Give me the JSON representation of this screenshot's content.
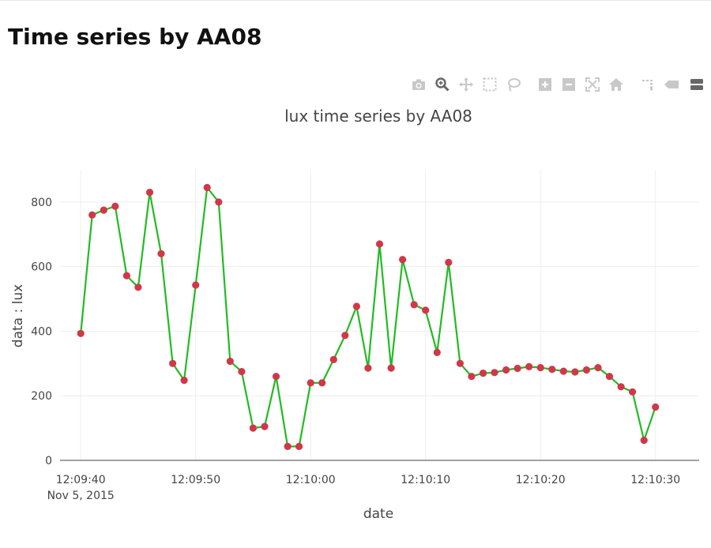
{
  "page": {
    "title": "Time series by AA08"
  },
  "modebar": {
    "icons": [
      "camera-icon",
      "zoom-icon",
      "pan-icon",
      "box-select-icon",
      "lasso-icon",
      "zoom-in-icon",
      "zoom-out-icon",
      "autoscale-icon",
      "home-icon",
      "spike-lines-icon",
      "hover-closest-icon",
      "hover-compare-icon"
    ]
  },
  "chart_data": {
    "type": "line",
    "title": "lux time series by AA08",
    "xlabel": "date",
    "ylabel": "data : lux",
    "x_range": [
      "2015-11-05 12:09:38.2",
      "2015-11-05 12:10:33.8"
    ],
    "ylim": [
      0,
      900
    ],
    "x_ticks": [
      {
        "value": "12:09:40",
        "label": "12:09:40",
        "sublabel": "Nov 5, 2015"
      },
      {
        "value": "12:09:50",
        "label": "12:09:50"
      },
      {
        "value": "12:10:00",
        "label": "12:10:00"
      },
      {
        "value": "12:10:10",
        "label": "12:10:10"
      },
      {
        "value": "12:10:20",
        "label": "12:10:20"
      },
      {
        "value": "12:10:30",
        "label": "12:10:30"
      }
    ],
    "y_ticks": [
      0,
      200,
      400,
      600,
      800
    ],
    "grid": true,
    "line_color": "#22bb22",
    "marker_color": "#d0384a",
    "series": [
      {
        "x": [
          "12:09:40",
          "12:09:41",
          "12:09:42",
          "12:09:43",
          "12:09:44",
          "12:09:45",
          "12:09:46",
          "12:09:47",
          "12:09:48",
          "12:09:49",
          "12:09:50",
          "12:09:51",
          "12:09:52",
          "12:09:53",
          "12:09:54",
          "12:09:55",
          "12:09:56",
          "12:09:57",
          "12:09:58",
          "12:09:59",
          "12:10:00",
          "12:10:01",
          "12:10:02",
          "12:10:03",
          "12:10:04",
          "12:10:05",
          "12:10:06",
          "12:10:07",
          "12:10:08",
          "12:10:09",
          "12:10:10",
          "12:10:11",
          "12:10:12",
          "12:10:13",
          "12:10:14",
          "12:10:15",
          "12:10:16",
          "12:10:17",
          "12:10:18",
          "12:10:19",
          "12:10:20",
          "12:10:21",
          "12:10:22",
          "12:10:23",
          "12:10:24",
          "12:10:25",
          "12:10:26",
          "12:10:27",
          "12:10:28",
          "12:10:29",
          "12:10:30"
        ],
        "y": [
          393,
          760,
          775,
          787,
          572,
          536,
          830,
          640,
          300,
          248,
          543,
          845,
          800,
          307,
          275,
          100,
          105,
          260,
          43,
          43,
          240,
          240,
          312,
          387,
          477,
          286,
          670,
          286,
          622,
          482,
          465,
          334,
          613,
          300,
          260,
          270,
          272,
          280,
          285,
          290,
          287,
          282,
          276,
          274,
          280,
          287,
          260,
          228,
          212,
          62,
          165
        ]
      }
    ]
  }
}
